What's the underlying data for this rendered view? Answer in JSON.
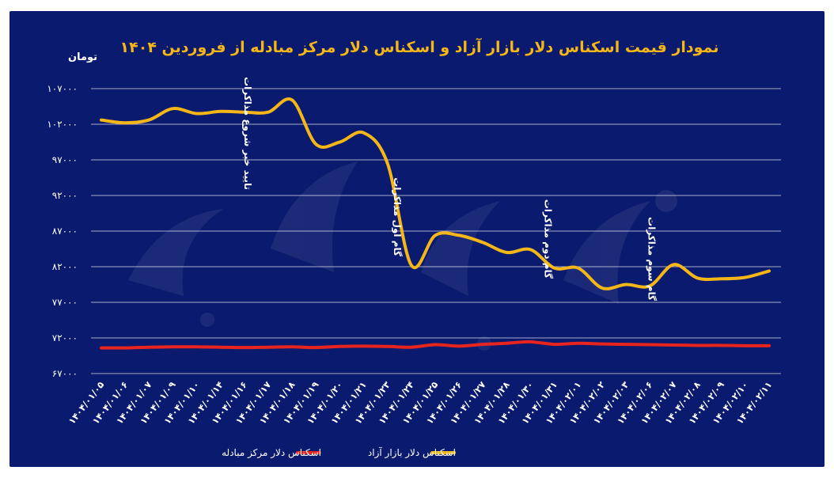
{
  "chart_data": {
    "type": "line",
    "title": "نمودار قیمت اسکناس دلار بازار آزاد و اسکناس دلار مرکز مبادله از فروردین ۱۴۰۴",
    "ylabel": "تومان",
    "xlabel": "",
    "ylim": [
      67000,
      107000
    ],
    "yticks": [
      67000,
      72000,
      77000,
      82000,
      87000,
      92000,
      97000,
      102000,
      107000
    ],
    "ytick_labels": [
      "۶۷۰۰۰",
      "۷۲۰۰۰",
      "۷۷۰۰۰",
      "۸۲۰۰۰",
      "۸۷۰۰۰",
      "۹۲۰۰۰",
      "۹۷۰۰۰",
      "۱۰۲۰۰۰",
      "۱۰۷۰۰۰"
    ],
    "grid": true,
    "legend_position": "bottom-center",
    "categories": [
      "۱۴۰۴/۰۱/۰۵",
      "۱۴۰۴/۰۱/۰۶",
      "۱۴۰۴/۰۱/۰۷",
      "۱۴۰۴/۰۱/۰۹",
      "۱۴۰۴/۰۱/۱۰",
      "۱۴۰۴/۰۱/۱۴",
      "۱۴۰۴/۰۱/۱۶",
      "۱۴۰۴/۰۱/۱۷",
      "۱۴۰۴/۰۱/۱۸",
      "۱۴۰۴/۰۱/۱۹",
      "۱۴۰۴/۰۱/۲۰",
      "۱۴۰۴/۰۱/۲۱",
      "۱۴۰۴/۰۱/۲۳",
      "۱۴۰۴/۰۱/۲۴",
      "۱۴۰۴/۰۱/۲۵",
      "۱۴۰۴/۰۱/۲۶",
      "۱۴۰۴/۰۱/۲۷",
      "۱۴۰۴/۰۱/۲۸",
      "۱۴۰۴/۰۱/۳۰",
      "۱۴۰۴/۰۱/۳۱",
      "۱۴۰۴/۰۲/۰۱",
      "۱۴۰۴/۰۲/۰۲",
      "۱۴۰۴/۰۲/۰۳",
      "۱۴۰۴/۰۲/۰۶",
      "۱۴۰۴/۰۲/۰۷",
      "۱۴۰۴/۰۲/۰۸",
      "۱۴۰۴/۰۲/۰۹",
      "۱۴۰۴/۰۲/۱۰",
      "۱۴۰۴/۰۲/۱۱"
    ],
    "series": [
      {
        "name": "اسکناس دلار بازار آزاد",
        "color": "#f5b617",
        "values": [
          102600,
          102200,
          102600,
          104200,
          103500,
          103800,
          103700,
          103700,
          105400,
          99200,
          99500,
          100800,
          96500,
          82200,
          86400,
          86400,
          85400,
          84000,
          84400,
          81800,
          81800,
          79000,
          79500,
          79300,
          82300,
          80400,
          80300,
          80500,
          81400
        ]
      },
      {
        "name": "اسکناس دلار مرکز مبادله",
        "color": "#e8241f",
        "values": [
          70600,
          70600,
          70700,
          70750,
          70750,
          70700,
          70650,
          70700,
          70750,
          70650,
          70800,
          70850,
          70800,
          70700,
          71050,
          70850,
          71100,
          71250,
          71450,
          71100,
          71250,
          71150,
          71100,
          71050,
          71000,
          70950,
          70950,
          70900,
          70900
        ]
      }
    ],
    "annotations": [
      {
        "text": "تایید خبر شروع مذاکرات",
        "at": "۱۴۰۴/۰۱/۱۶"
      },
      {
        "text": "گام اول مذاکرات",
        "at": "۱۴۰۴/۰۱/۲۴"
      },
      {
        "text": "گام دوم مذاکرات",
        "at": "۱۴۰۴/۰۱/۳۰"
      },
      {
        "text": "گام سوم مذاکرات",
        "at": "۱۴۰۴/۰۲/۰۶"
      }
    ]
  }
}
